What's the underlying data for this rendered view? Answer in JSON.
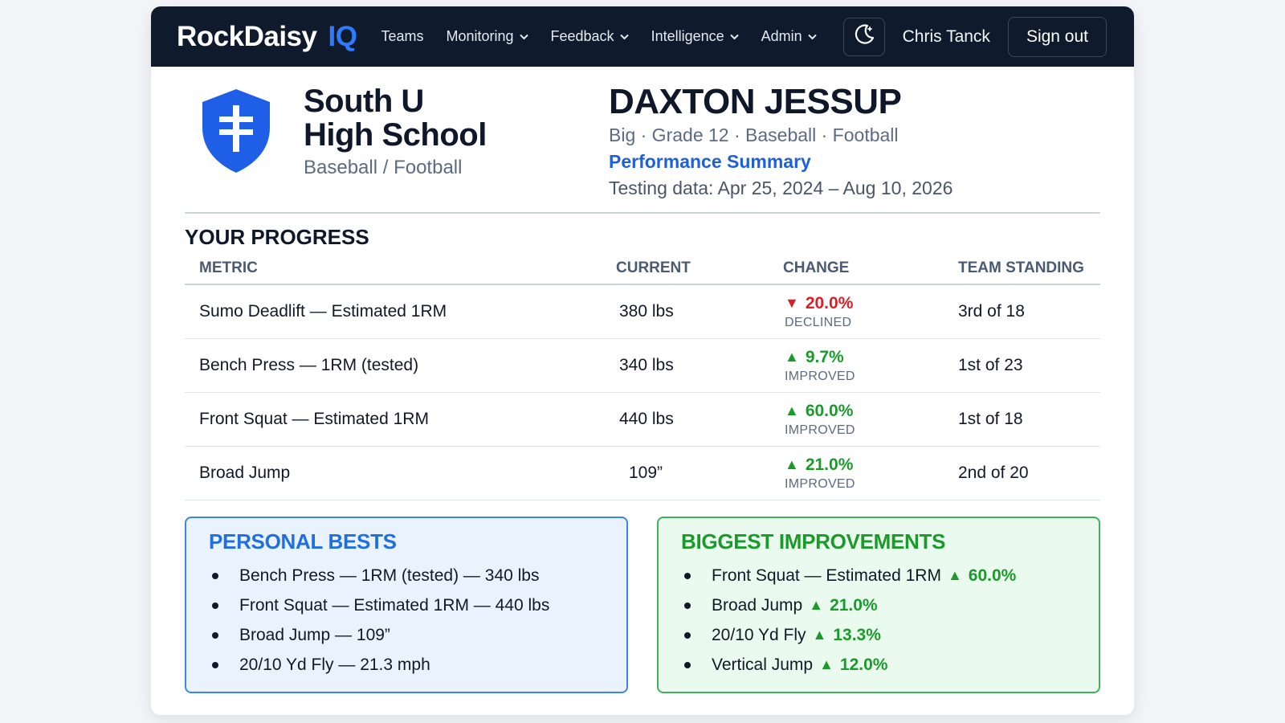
{
  "nav": {
    "brand_main": "RockDaisy",
    "brand_iq": "IQ",
    "items": [
      {
        "label": "Teams",
        "has_dropdown": false
      },
      {
        "label": "Monitoring",
        "has_dropdown": true
      },
      {
        "label": "Feedback",
        "has_dropdown": true
      },
      {
        "label": "Intelligence",
        "has_dropdown": true
      },
      {
        "label": "Admin",
        "has_dropdown": true
      }
    ],
    "theme_icon": "moon-icon",
    "user_name": "Chris Tanck",
    "signout_label": "Sign out"
  },
  "school": {
    "name_line1": "South U",
    "name_line2": "High School",
    "sports": "Baseball / Football",
    "logo_icon": "cross-shield-icon"
  },
  "athlete": {
    "name": "DAXTON JESSUP",
    "meta": "Big · Grade 12 · Baseball · Football",
    "report_title": "Performance Summary",
    "testing_range": "Testing data: Apr 25, 2024 – Aug 10, 2026"
  },
  "progress": {
    "title": "YOUR PROGRESS",
    "columns": [
      "METRIC",
      "CURRENT",
      "CHANGE",
      "TEAM STANDING"
    ],
    "rows": [
      {
        "metric": "Sumo Deadlift — Estimated 1RM",
        "current": "380 lbs",
        "change": "20.0%",
        "direction": "down",
        "status": "DECLINED",
        "standing": "3rd of 18"
      },
      {
        "metric": "Bench Press — 1RM (tested)",
        "current": "340 lbs",
        "change": "9.7%",
        "direction": "up",
        "status": "IMPROVED",
        "standing": "1st of 23"
      },
      {
        "metric": "Front Squat — Estimated 1RM",
        "current": "440 lbs",
        "change": "60.0%",
        "direction": "up",
        "status": "IMPROVED",
        "standing": "1st of 18"
      },
      {
        "metric": "Broad Jump",
        "current": "109”",
        "change": "21.0%",
        "direction": "up",
        "status": "IMPROVED",
        "standing": "2nd of 20"
      }
    ]
  },
  "personal_bests": {
    "title": "PERSONAL BESTS",
    "items": [
      "Bench Press — 1RM (tested) — 340 lbs",
      "Front Squat — Estimated 1RM — 440 lbs",
      "Broad Jump — 109”",
      "20/10 Yd Fly — 21.3 mph"
    ]
  },
  "biggest_improvements": {
    "title": "BIGGEST IMPROVEMENTS",
    "items": [
      {
        "label": "Front Squat — Estimated 1RM",
        "value": "60.0%"
      },
      {
        "label": "Broad Jump",
        "value": "21.0%"
      },
      {
        "label": "20/10 Yd Fly",
        "value": "13.3%"
      },
      {
        "label": "Vertical Jump",
        "value": "12.0%"
      }
    ]
  },
  "colors": {
    "navbar_bg": "#0f1b2d",
    "brand_accent": "#2f7bff",
    "declined": "#dc1f26",
    "improved": "#1b9a2c",
    "shield_blue": "#1f5fe8"
  }
}
